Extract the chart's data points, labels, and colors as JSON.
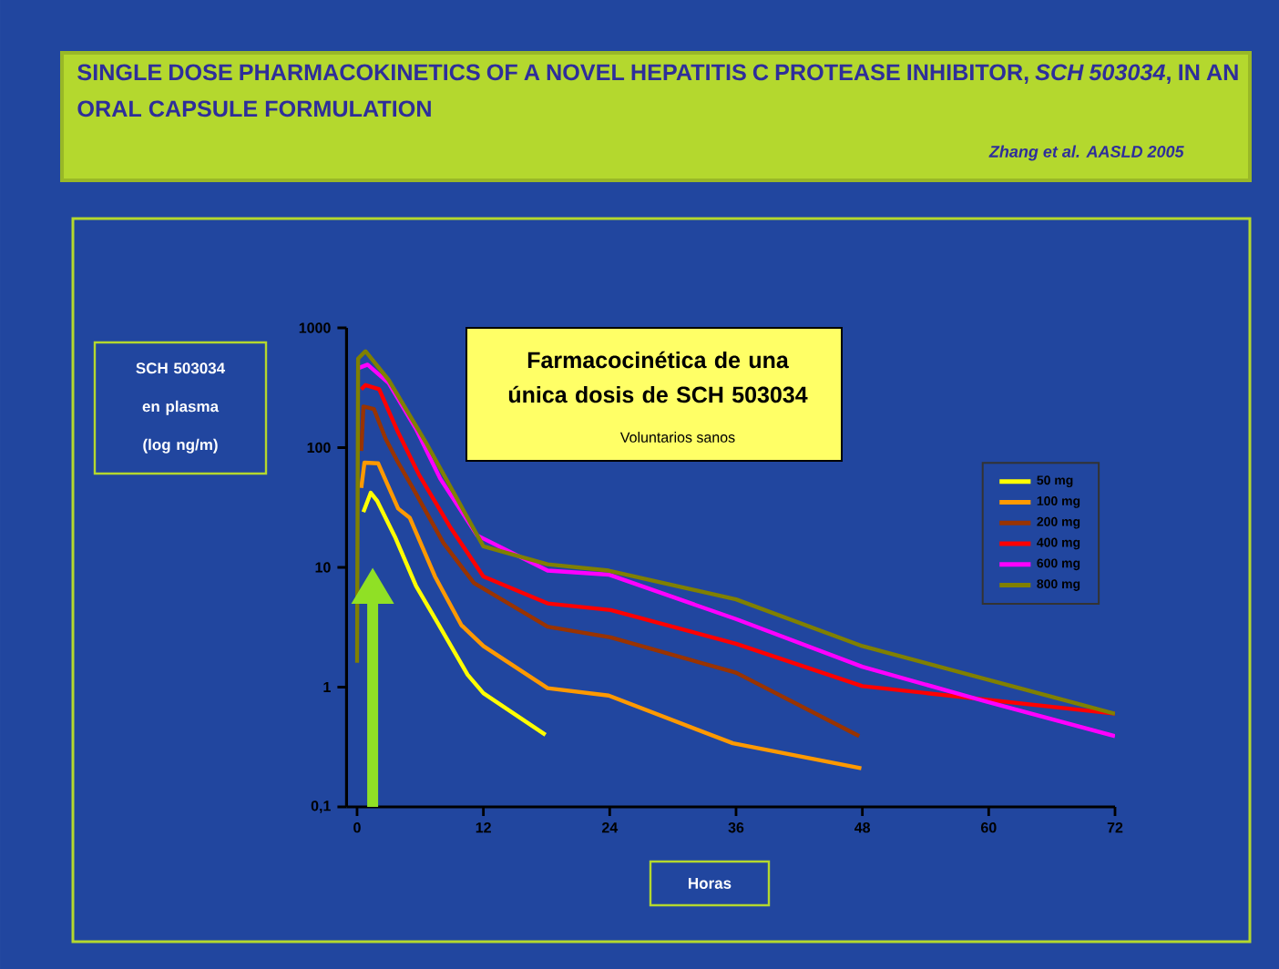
{
  "chart_data": {
    "type": "line",
    "title": "SINGLE DOSE PHARMACOKINETICS OF A NOVEL HEPATITIS C PROTEASE INHIBITOR, *SCH 503034*, IN AN ORAL CAPSULE FORMULATION",
    "subtitle": "Farmacocinética de una única dosis de SCH 503034",
    "annotations": [
      "Voluntarios sanos",
      "Zhang et al. AASLD 2005"
    ],
    "xlabel": "Horas",
    "ylabel": "SCH 503034 en plasma (log ng/m)",
    "xlim": [
      -1,
      72
    ],
    "ylim": [
      0.1,
      1000
    ],
    "log": "y",
    "xticks": [
      0,
      12,
      24,
      36,
      48,
      60,
      72
    ],
    "yticks": [
      {
        "value": 0.1,
        "label": "0,1"
      },
      1,
      10,
      100,
      1000
    ],
    "legend": "right",
    "marker": "none",
    "line_style": "solid",
    "series": [
      {
        "name": "50 mg",
        "color": "#ffff00",
        "x": [
          0.6,
          1.3,
          1.9,
          3.6,
          5.6,
          7.6,
          10.5,
          12,
          17.9
        ],
        "values": [
          29,
          42,
          36,
          18,
          7,
          3.5,
          1.27,
          0.89,
          0.4
        ]
      },
      {
        "name": "100 mg",
        "color": "#ff9900",
        "x": [
          0.4,
          0.7,
          2,
          3.9,
          5,
          7.4,
          9.9,
          12,
          18.1,
          23.9,
          35.7,
          47.9
        ],
        "values": [
          46,
          75,
          74,
          31,
          26,
          8.4,
          3.3,
          2.2,
          0.98,
          0.85,
          0.34,
          0.21
        ]
      },
      {
        "name": "200 mg",
        "color": "#993300",
        "x": [
          0.4,
          0.6,
          1.6,
          2.7,
          3.9,
          5.3,
          8.2,
          11.1,
          18.1,
          24.1,
          36,
          47.7
        ],
        "values": [
          94,
          220,
          210,
          119,
          75,
          46,
          16,
          7.4,
          3.2,
          2.6,
          1.32,
          0.39
        ]
      },
      {
        "name": "400 mg",
        "color": "#ff0000",
        "x": [
          0.4,
          0.8,
          2.1,
          3.9,
          5.9,
          8.8,
          12,
          18.1,
          24.1,
          36,
          48,
          72
        ],
        "values": [
          307,
          333,
          307,
          134,
          59,
          22,
          8.4,
          5.0,
          4.4,
          2.3,
          1.02,
          0.6
        ]
      },
      {
        "name": "600 mg",
        "color": "#ff00ff",
        "x": [
          0.2,
          1,
          3,
          5.6,
          7.9,
          11.4,
          18.1,
          23.9,
          36,
          48,
          59.7,
          72
        ],
        "values": [
          464,
          493,
          346,
          143,
          55,
          18.5,
          9.4,
          8.7,
          3.7,
          1.48,
          0.76,
          0.39
        ]
      },
      {
        "name": "800 mg",
        "color": "#808000",
        "x": [
          0,
          0.1,
          0.8,
          3,
          6.5,
          12,
          18.1,
          23.9,
          36,
          48,
          72
        ],
        "values": [
          1.6,
          554,
          638,
          367,
          112,
          15,
          10.6,
          9.4,
          5.4,
          2.2,
          0.6
        ]
      }
    ]
  }
}
